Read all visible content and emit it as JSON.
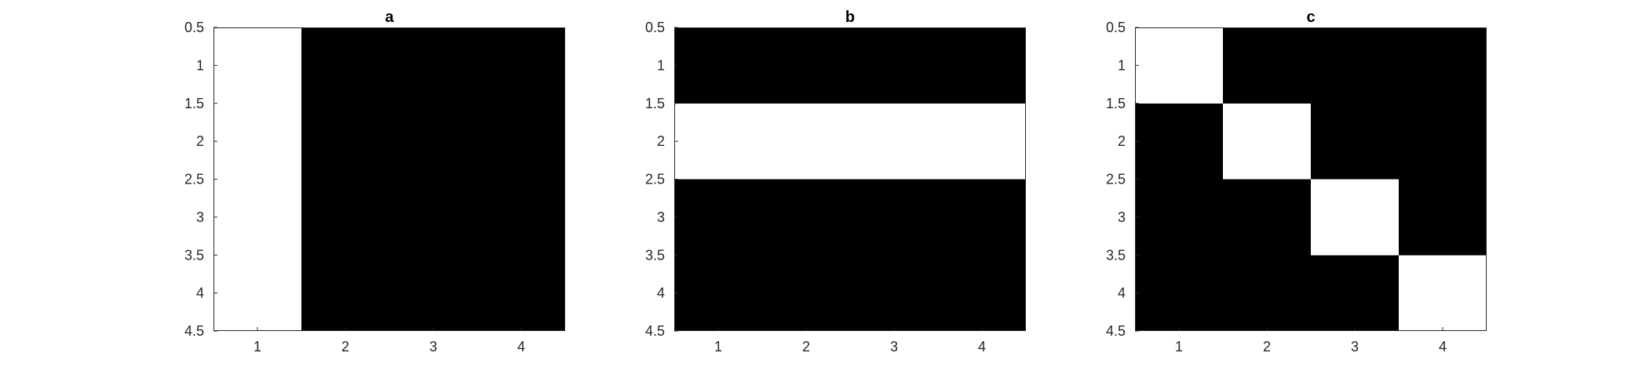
{
  "chart_data": [
    {
      "type": "heatmap",
      "title": "a",
      "xlabel": "",
      "ylabel": "",
      "colormap": {
        "0": "#000000",
        "1": "#ffffff"
      },
      "xlim": [
        0.5,
        4.5
      ],
      "ylim": [
        0.5,
        4.5
      ],
      "y_reversed": true,
      "grid": false,
      "xticks": [
        1,
        2,
        3,
        4
      ],
      "xtick_labels": [
        "1",
        "2",
        "3",
        "4"
      ],
      "yticks": [
        0.5,
        1,
        1.5,
        2,
        2.5,
        3,
        3.5,
        4,
        4.5
      ],
      "ytick_labels": [
        "0.5",
        "1",
        "1.5",
        "2",
        "2.5",
        "3",
        "3.5",
        "4",
        "4.5"
      ],
      "values": [
        [
          1,
          0,
          0,
          0
        ],
        [
          1,
          0,
          0,
          0
        ],
        [
          1,
          0,
          0,
          0
        ],
        [
          1,
          0,
          0,
          0
        ]
      ]
    },
    {
      "type": "heatmap",
      "title": "b",
      "xlabel": "",
      "ylabel": "",
      "colormap": {
        "0": "#000000",
        "1": "#ffffff"
      },
      "xlim": [
        0.5,
        4.5
      ],
      "ylim": [
        0.5,
        4.5
      ],
      "y_reversed": true,
      "grid": false,
      "xticks": [
        1,
        2,
        3,
        4
      ],
      "xtick_labels": [
        "1",
        "2",
        "3",
        "4"
      ],
      "yticks": [
        0.5,
        1,
        1.5,
        2,
        2.5,
        3,
        3.5,
        4,
        4.5
      ],
      "ytick_labels": [
        "0.5",
        "1",
        "1.5",
        "2",
        "2.5",
        "3",
        "3.5",
        "4",
        "4.5"
      ],
      "values": [
        [
          0,
          0,
          0,
          0
        ],
        [
          1,
          1,
          1,
          1
        ],
        [
          0,
          0,
          0,
          0
        ],
        [
          0,
          0,
          0,
          0
        ]
      ]
    },
    {
      "type": "heatmap",
      "title": "c",
      "xlabel": "",
      "ylabel": "",
      "colormap": {
        "0": "#000000",
        "1": "#ffffff"
      },
      "xlim": [
        0.5,
        4.5
      ],
      "ylim": [
        0.5,
        4.5
      ],
      "y_reversed": true,
      "grid": false,
      "xticks": [
        1,
        2,
        3,
        4
      ],
      "xtick_labels": [
        "1",
        "2",
        "3",
        "4"
      ],
      "yticks": [
        0.5,
        1,
        1.5,
        2,
        2.5,
        3,
        3.5,
        4,
        4.5
      ],
      "ytick_labels": [
        "0.5",
        "1",
        "1.5",
        "2",
        "2.5",
        "3",
        "3.5",
        "4",
        "4.5"
      ],
      "values": [
        [
          1,
          0,
          0,
          0
        ],
        [
          0,
          1,
          0,
          0
        ],
        [
          0,
          0,
          1,
          0
        ],
        [
          0,
          0,
          0,
          1
        ]
      ]
    }
  ]
}
